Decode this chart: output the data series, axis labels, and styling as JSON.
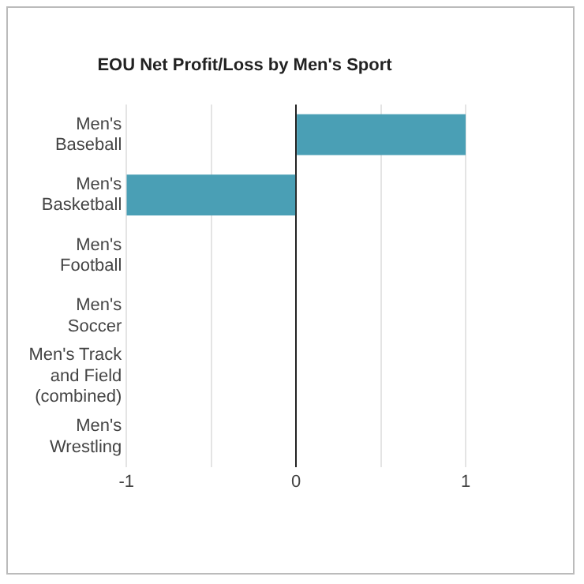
{
  "chart_data": {
    "type": "bar",
    "orientation": "horizontal",
    "title": "EOU Net Profit/Loss by Men's Sport",
    "categories": [
      "Men's Baseball",
      "Men's Basketball",
      "Men's Football",
      "Men's Soccer",
      "Men's Track and Field (combined)",
      "Men's Wrestling"
    ],
    "values": [
      1,
      -1,
      0,
      0,
      0,
      0
    ],
    "color": "#4a9fb5",
    "xlim": [
      -1,
      1
    ],
    "xticks": [
      -1,
      {
        "value": -0.5,
        "label": null
      },
      0,
      {
        "value": 0.5,
        "label": null
      },
      1
    ],
    "grid": "x"
  }
}
